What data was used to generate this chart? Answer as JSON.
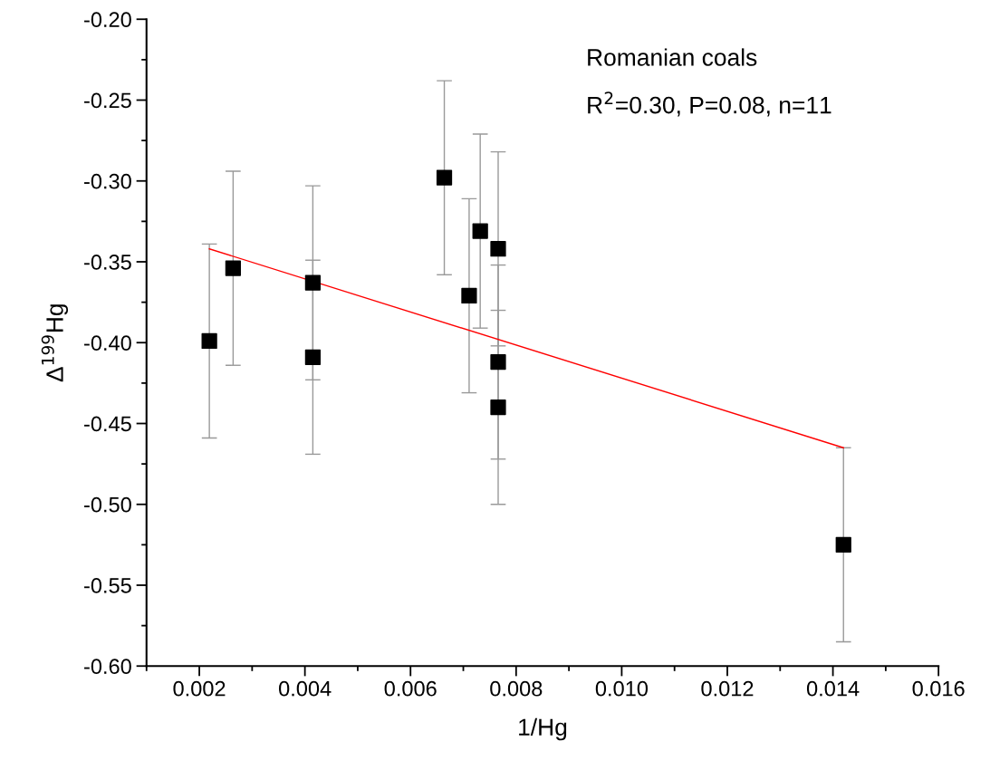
{
  "chart_data": {
    "type": "scatter",
    "xlabel": "1/Hg",
    "ylabel": "Δ$^{199}$Hg",
    "xlim": [
      0.001,
      0.016
    ],
    "xticks": [
      {
        "value": 0.002,
        "label": "0.002"
      },
      {
        "value": 0.004,
        "label": "0.004"
      },
      {
        "value": 0.006,
        "label": "0.006"
      },
      {
        "value": 0.008,
        "label": "0.008"
      },
      {
        "value": 0.01,
        "label": "0.010"
      },
      {
        "value": 0.012,
        "label": "0.012"
      },
      {
        "value": 0.014,
        "label": "0.014"
      },
      {
        "value": 0.016,
        "label": "0.016"
      }
    ],
    "ylim": [
      -0.6,
      -0.2
    ],
    "yticks": [
      {
        "value": -0.6,
        "label": "-0.60"
      },
      {
        "value": -0.55,
        "label": "-0.55"
      },
      {
        "value": -0.5,
        "label": "-0.50"
      },
      {
        "value": -0.45,
        "label": "-0.45"
      },
      {
        "value": -0.4,
        "label": "-0.40"
      },
      {
        "value": -0.35,
        "label": "-0.35"
      },
      {
        "value": -0.3,
        "label": "-0.30"
      },
      {
        "value": -0.25,
        "label": "-0.25"
      },
      {
        "value": -0.2,
        "label": "-0.20"
      }
    ],
    "annotations": [
      "Romanian coals",
      "R$^{2}$=0.30, P=0.08, n=11"
    ],
    "grid": false,
    "legend": false,
    "series": [
      {
        "marker": "square",
        "color": "#000000",
        "x": [
          0.00219,
          0.00264,
          0.00415,
          0.00415,
          0.00664,
          0.00711,
          0.00732,
          0.00766,
          0.00766,
          0.00766,
          0.0142
        ],
        "values": [
          -0.399,
          -0.354,
          -0.363,
          -0.409,
          -0.298,
          -0.371,
          -0.331,
          -0.342,
          -0.412,
          -0.44,
          -0.525
        ],
        "errors": [
          0.06,
          0.06,
          0.06,
          0.06,
          0.06,
          0.06,
          0.06,
          0.06,
          0.06,
          0.06,
          0.06
        ]
      },
      {
        "type": "line",
        "color": "#ff0000",
        "x": [
          0.00219,
          0.0142
        ],
        "values": [
          -0.342,
          -0.465
        ]
      }
    ]
  }
}
